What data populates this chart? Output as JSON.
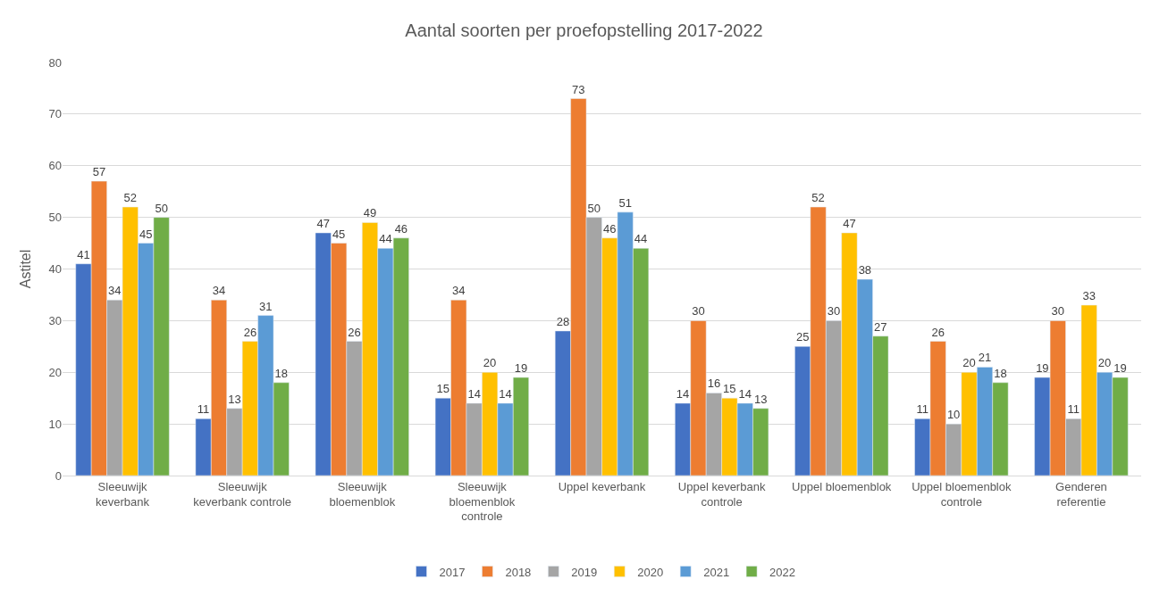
{
  "chart_data": {
    "type": "bar",
    "title": "Aantal soorten per proefopstelling 2017-2022",
    "ylabel": "Astitel",
    "categories": [
      "Sleeuwijk keverbank",
      "Sleeuwijk keverbank controle",
      "Sleeuwijk bloemenblok",
      "Sleeuwijk bloemenblok controle",
      "Uppel keverbank",
      "Uppel keverbank controle",
      "Uppel bloemenblok",
      "Uppel bloemenblok controle",
      "Genderen referentie"
    ],
    "series": [
      {
        "name": "2017",
        "color": "#4472c4",
        "values": [
          41,
          11,
          47,
          15,
          28,
          14,
          25,
          11,
          19
        ]
      },
      {
        "name": "2018",
        "color": "#ed7d31",
        "values": [
          57,
          34,
          45,
          34,
          73,
          30,
          52,
          26,
          30
        ]
      },
      {
        "name": "2019",
        "color": "#a5a5a5",
        "values": [
          34,
          13,
          26,
          14,
          50,
          16,
          30,
          10,
          11
        ]
      },
      {
        "name": "2020",
        "color": "#ffc000",
        "values": [
          52,
          26,
          49,
          20,
          46,
          15,
          47,
          20,
          33
        ]
      },
      {
        "name": "2021",
        "color": "#5b9bd5",
        "values": [
          45,
          31,
          44,
          14,
          51,
          14,
          38,
          21,
          20
        ]
      },
      {
        "name": "2022",
        "color": "#70ad47",
        "values": [
          50,
          18,
          46,
          19,
          44,
          13,
          27,
          18,
          19
        ]
      }
    ],
    "ylim": [
      0,
      80
    ],
    "yticks": [
      0,
      10,
      20,
      30,
      40,
      50,
      60,
      70,
      80
    ],
    "grid": "y",
    "legend": "bottom",
    "data_labels": true
  }
}
